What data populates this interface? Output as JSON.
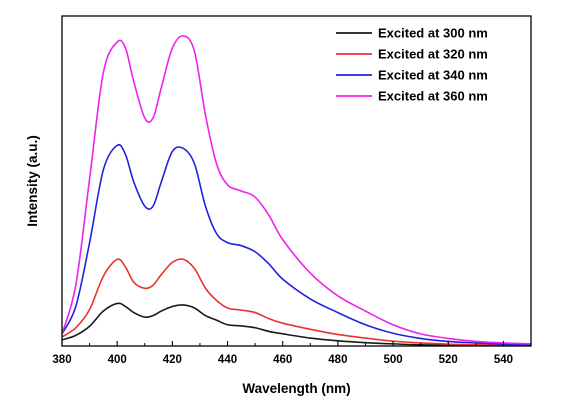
{
  "chart_data": {
    "type": "line",
    "xlabel": "Wavelength (nm)",
    "ylabel": "Intensity (a.u.)",
    "xlim": [
      380,
      550
    ],
    "ylim": [
      0,
      1
    ],
    "xticks": [
      380,
      400,
      420,
      440,
      460,
      480,
      500,
      520,
      540
    ],
    "yticks_shown": false,
    "grid": false,
    "legend_position": "top-right",
    "series": [
      {
        "name": "Excited at 300 nm",
        "color": "#1a1a1a",
        "x": [
          380,
          385,
          390,
          395,
          400,
          403,
          406,
          410,
          413,
          416,
          420,
          424,
          428,
          432,
          436,
          440,
          445,
          450,
          455,
          460,
          470,
          480,
          490,
          500,
          510,
          520,
          530,
          540,
          550
        ],
        "y": [
          0.02,
          0.035,
          0.065,
          0.115,
          0.14,
          0.13,
          0.11,
          0.095,
          0.1,
          0.115,
          0.13,
          0.135,
          0.125,
          0.1,
          0.085,
          0.07,
          0.066,
          0.06,
          0.048,
          0.04,
          0.026,
          0.017,
          0.011,
          0.007,
          0.004,
          0.003,
          0.002,
          0.001,
          0.001
        ]
      },
      {
        "name": "Excited at 320 nm",
        "color": "#e8342e",
        "x": [
          380,
          385,
          390,
          395,
          400,
          403,
          406,
          410,
          413,
          416,
          420,
          424,
          428,
          432,
          436,
          440,
          445,
          450,
          455,
          460,
          470,
          480,
          490,
          500,
          510,
          520,
          530,
          540,
          550
        ],
        "y": [
          0.03,
          0.06,
          0.12,
          0.23,
          0.285,
          0.26,
          0.21,
          0.19,
          0.2,
          0.235,
          0.275,
          0.285,
          0.255,
          0.19,
          0.15,
          0.125,
          0.118,
          0.11,
          0.09,
          0.075,
          0.055,
          0.038,
          0.026,
          0.016,
          0.01,
          0.006,
          0.004,
          0.003,
          0.002
        ]
      },
      {
        "name": "Excited at 340 nm",
        "color": "#2222dd",
        "x": [
          380,
          385,
          390,
          395,
          400,
          403,
          406,
          410,
          413,
          416,
          420,
          424,
          428,
          432,
          436,
          440,
          445,
          450,
          455,
          460,
          470,
          480,
          490,
          500,
          510,
          520,
          530,
          540,
          550
        ],
        "y": [
          0.04,
          0.13,
          0.34,
          0.58,
          0.66,
          0.63,
          0.54,
          0.46,
          0.46,
          0.54,
          0.64,
          0.65,
          0.6,
          0.46,
          0.37,
          0.34,
          0.33,
          0.31,
          0.27,
          0.22,
          0.155,
          0.11,
          0.07,
          0.042,
          0.025,
          0.015,
          0.01,
          0.006,
          0.004
        ]
      },
      {
        "name": "Excited at 360 nm",
        "color": "#ee22ee",
        "x": [
          380,
          385,
          390,
          395,
          400,
          403,
          406,
          410,
          413,
          416,
          420,
          424,
          428,
          432,
          436,
          440,
          445,
          450,
          455,
          460,
          470,
          480,
          490,
          500,
          510,
          520,
          530,
          540,
          550
        ],
        "y": [
          0.04,
          0.2,
          0.55,
          0.9,
          1.0,
          0.98,
          0.87,
          0.75,
          0.75,
          0.85,
          0.98,
          1.02,
          0.97,
          0.76,
          0.6,
          0.53,
          0.51,
          0.49,
          0.43,
          0.35,
          0.24,
          0.165,
          0.115,
          0.07,
          0.04,
          0.025,
          0.015,
          0.01,
          0.007
        ]
      }
    ]
  }
}
